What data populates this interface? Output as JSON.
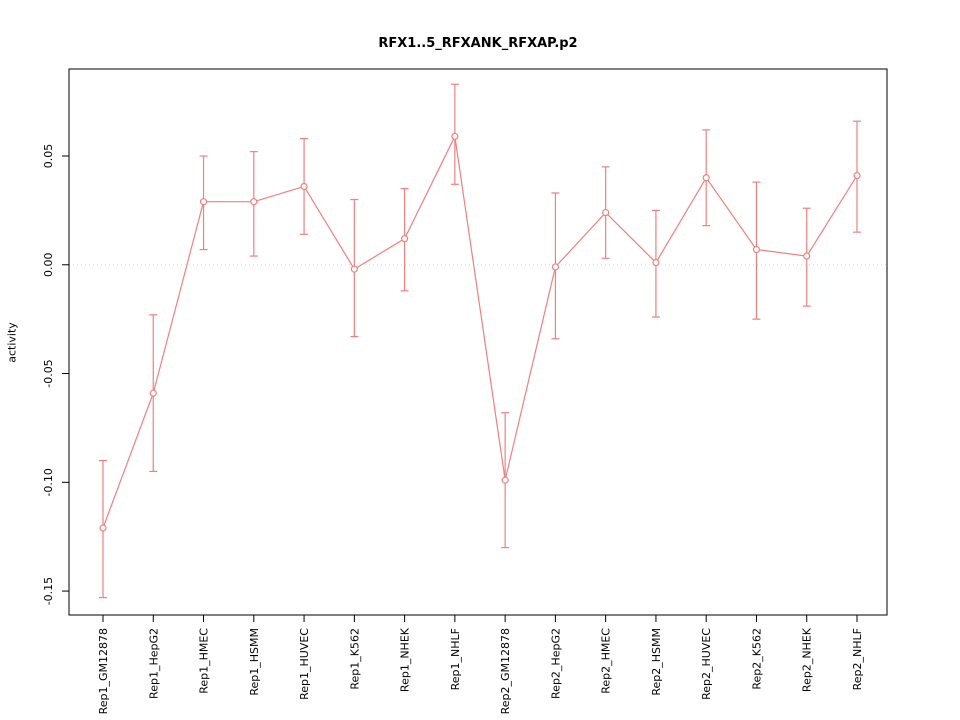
{
  "chart_data": {
    "type": "line",
    "title": "RFX1..5_RFXANK_RFXAP.p2",
    "ylabel": "activity",
    "xlabel": "",
    "categories": [
      "Rep1_GM12878",
      "Rep1_HepG2",
      "Rep1_HMEC",
      "Rep1_HSMM",
      "Rep1_HUVEC",
      "Rep1_K562",
      "Rep1_NHEK",
      "Rep1_NHLF",
      "Rep2_GM12878",
      "Rep2_HepG2",
      "Rep2_HMEC",
      "Rep2_HSMM",
      "Rep2_HUVEC",
      "Rep2_K562",
      "Rep2_NHEK",
      "Rep2_NHLF"
    ],
    "values": [
      -0.121,
      -0.059,
      0.029,
      0.029,
      0.036,
      -0.002,
      0.012,
      0.059,
      -0.099,
      -0.001,
      0.024,
      0.001,
      0.04,
      0.007,
      0.004,
      0.041
    ],
    "ci_low": [
      -0.153,
      -0.095,
      0.007,
      0.004,
      0.014,
      -0.033,
      -0.012,
      0.037,
      -0.13,
      -0.034,
      0.003,
      -0.024,
      0.018,
      -0.025,
      -0.019,
      0.015
    ],
    "ci_high": [
      -0.09,
      -0.023,
      0.05,
      0.052,
      0.058,
      0.03,
      0.035,
      0.083,
      -0.068,
      0.033,
      0.045,
      0.025,
      0.062,
      0.038,
      0.026,
      0.066
    ],
    "ylim": [
      -0.161,
      0.09
    ],
    "y_ticks": [
      0.05,
      0.0,
      -0.05,
      -0.1,
      -0.15
    ],
    "y_tick_labels": [
      "0.05",
      "0.00",
      "-0.05",
      "-0.10",
      "-0.15"
    ],
    "grid": "dotted line at y = 0 only",
    "legend": "none",
    "line_color": "#f08080",
    "point_style": "open-circle",
    "error_bars": true,
    "gridline_color": "#d9d9d9",
    "axis_color": "#000000"
  }
}
